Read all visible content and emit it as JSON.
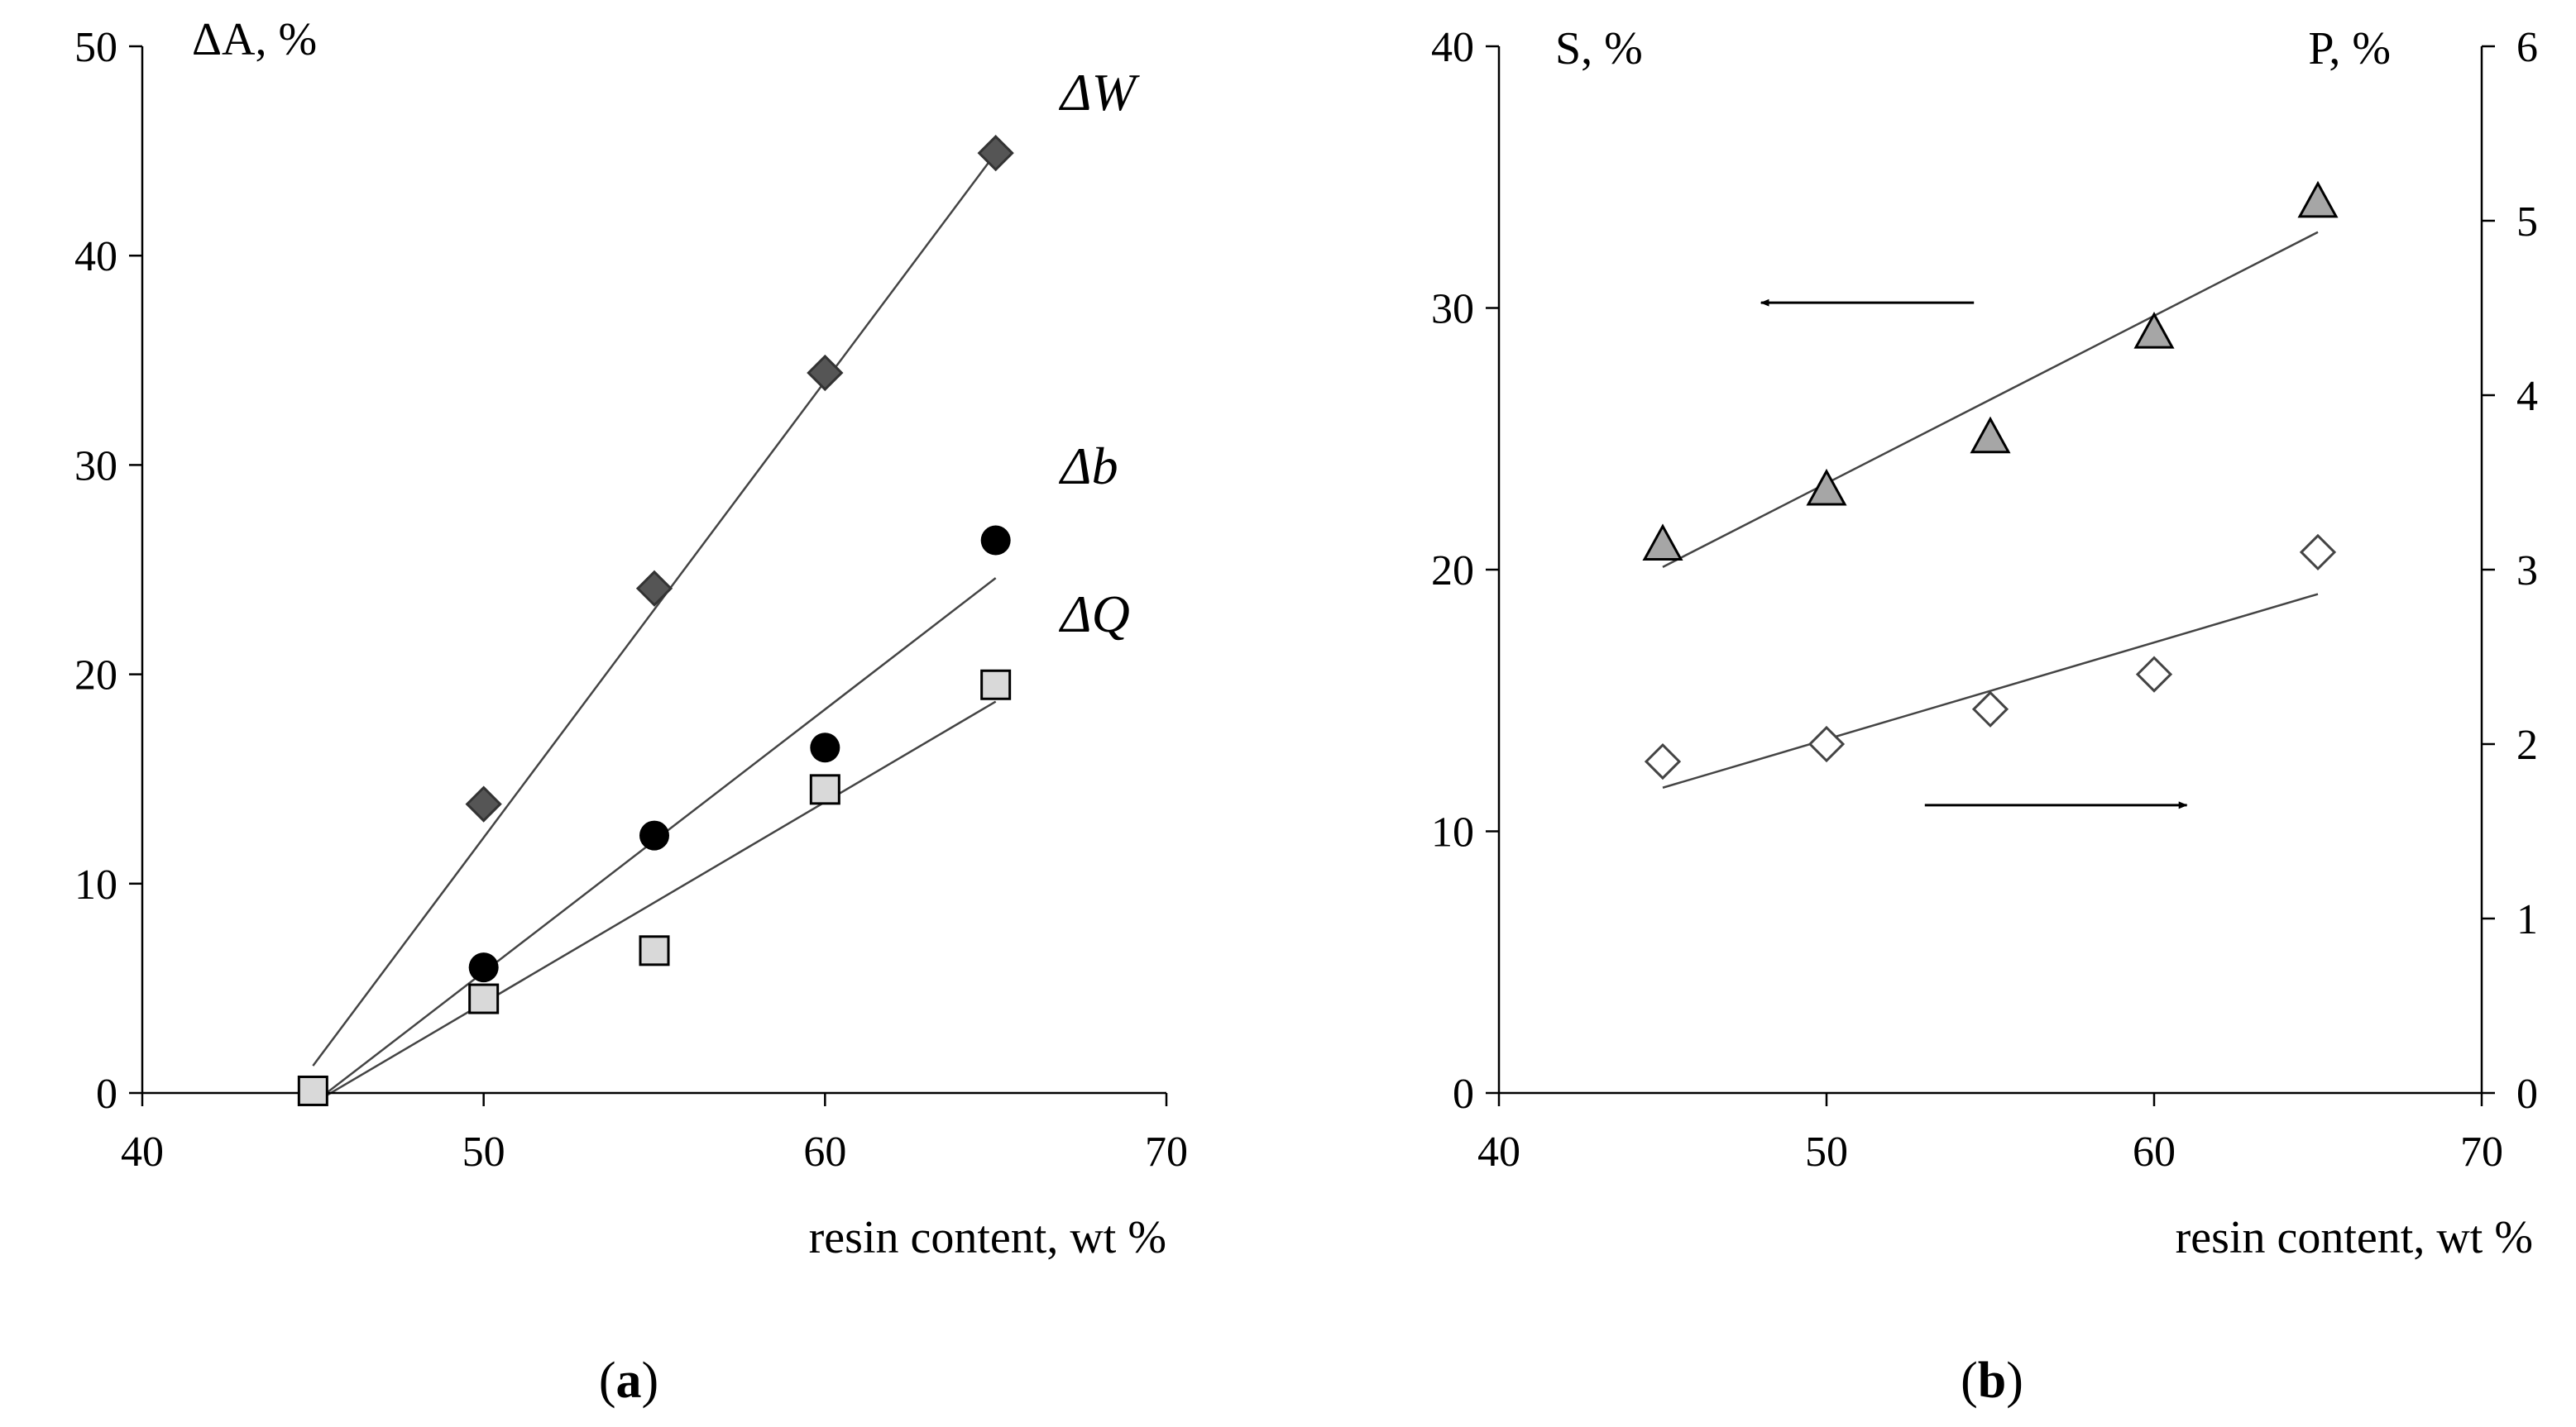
{
  "chart_data": [
    {
      "type": "scatter",
      "panel_label": "a",
      "title": "",
      "xlabel": "resin content, wt %",
      "ylabel": "ΔA, %",
      "xlim": [
        40,
        70
      ],
      "ylim": [
        0,
        50
      ],
      "xticks": [
        40,
        50,
        60,
        70
      ],
      "yticks": [
        0,
        10,
        20,
        30,
        40,
        50
      ],
      "grid": false,
      "series": [
        {
          "name": "ΔW",
          "marker": "diamond",
          "color": "#555555",
          "x": [
            50,
            55,
            60,
            65
          ],
          "y": [
            13.8,
            24.1,
            34.4,
            44.9
          ],
          "fit": [
            [
              45,
              1.3
            ],
            [
              65,
              44.9
            ]
          ]
        },
        {
          "name": "Δb",
          "marker": "circle",
          "color": "#000000",
          "x": [
            50,
            55,
            60,
            65
          ],
          "y": [
            6.0,
            12.3,
            16.5,
            26.4
          ],
          "fit": [
            [
              45,
              -0.5
            ],
            [
              65,
              24.6
            ]
          ]
        },
        {
          "name": "ΔQ",
          "marker": "square",
          "color": "#d9d9d9",
          "x": [
            45,
            50,
            55,
            60,
            65
          ],
          "y": [
            0.1,
            4.5,
            6.8,
            14.5,
            19.5
          ],
          "fit": [
            [
              45,
              -0.5
            ],
            [
              65,
              18.7
            ]
          ]
        }
      ]
    },
    {
      "type": "scatter",
      "panel_label": "b",
      "title": "",
      "xlabel": "resin content, wt %",
      "ylabel": "S, %",
      "y2label": "P, %",
      "xlim": [
        40,
        70
      ],
      "ylim": [
        0,
        40
      ],
      "y2lim": [
        0,
        6
      ],
      "xticks": [
        40,
        50,
        60,
        70
      ],
      "yticks": [
        0,
        10,
        20,
        30,
        40
      ],
      "y2ticks": [
        0,
        1,
        2,
        3,
        4,
        5,
        6
      ],
      "grid": false,
      "series": [
        {
          "name": "S",
          "axis": "left",
          "marker": "triangle",
          "color": "#a6a6a6",
          "x": [
            45,
            50,
            55,
            60,
            65
          ],
          "y": [
            20.9,
            23.0,
            25.0,
            29.0,
            34.0
          ],
          "fit": [
            [
              45,
              20.1
            ],
            [
              65,
              32.9
            ]
          ]
        },
        {
          "name": "P",
          "axis": "right",
          "marker": "diamond-open",
          "color": "#ffffff",
          "x": [
            45,
            50,
            55,
            60,
            65
          ],
          "y": [
            1.9,
            2.0,
            2.2,
            2.4,
            3.1
          ],
          "fit": [
            [
              45,
              1.75
            ],
            [
              65,
              2.86
            ]
          ]
        }
      ],
      "annotations": [
        {
          "type": "arrow",
          "direction": "left",
          "refers_to": "S",
          "x_from": 54.5,
          "x_to": 48,
          "y": 30.2
        },
        {
          "type": "arrow",
          "direction": "right",
          "refers_to": "P",
          "x_from": 53,
          "x_to": 61,
          "y": 11.0
        }
      ]
    }
  ]
}
